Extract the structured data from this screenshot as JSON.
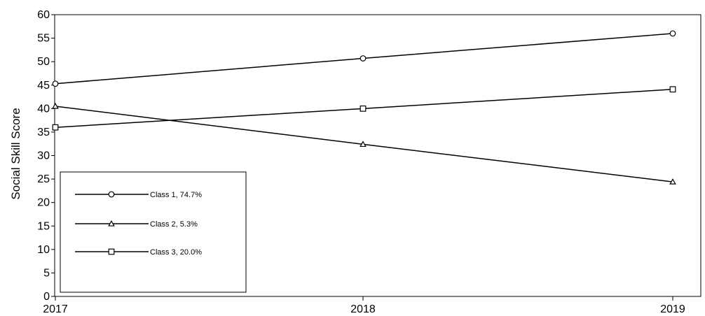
{
  "chart_data": {
    "type": "line",
    "x": [
      "2017",
      "2018",
      "2019"
    ],
    "ylabel": "Social Skill Score",
    "xlabel": "",
    "ylim": [
      0,
      60
    ],
    "y_ticks": [
      0,
      5,
      10,
      15,
      20,
      25,
      30,
      35,
      40,
      45,
      50,
      55,
      60
    ],
    "grid": false,
    "legend_position": "bottom-left",
    "series": [
      {
        "name": "Class 1, 74.7%",
        "marker": "circle",
        "values": [
          45.3,
          50.7,
          56.0
        ]
      },
      {
        "name": "Class 2, 5.3%",
        "marker": "triangle",
        "values": [
          40.5,
          32.4,
          24.4
        ]
      },
      {
        "name": "Class 3, 20.0%",
        "marker": "square",
        "values": [
          36.0,
          40.0,
          44.1
        ]
      }
    ],
    "line_color": "#000000"
  }
}
